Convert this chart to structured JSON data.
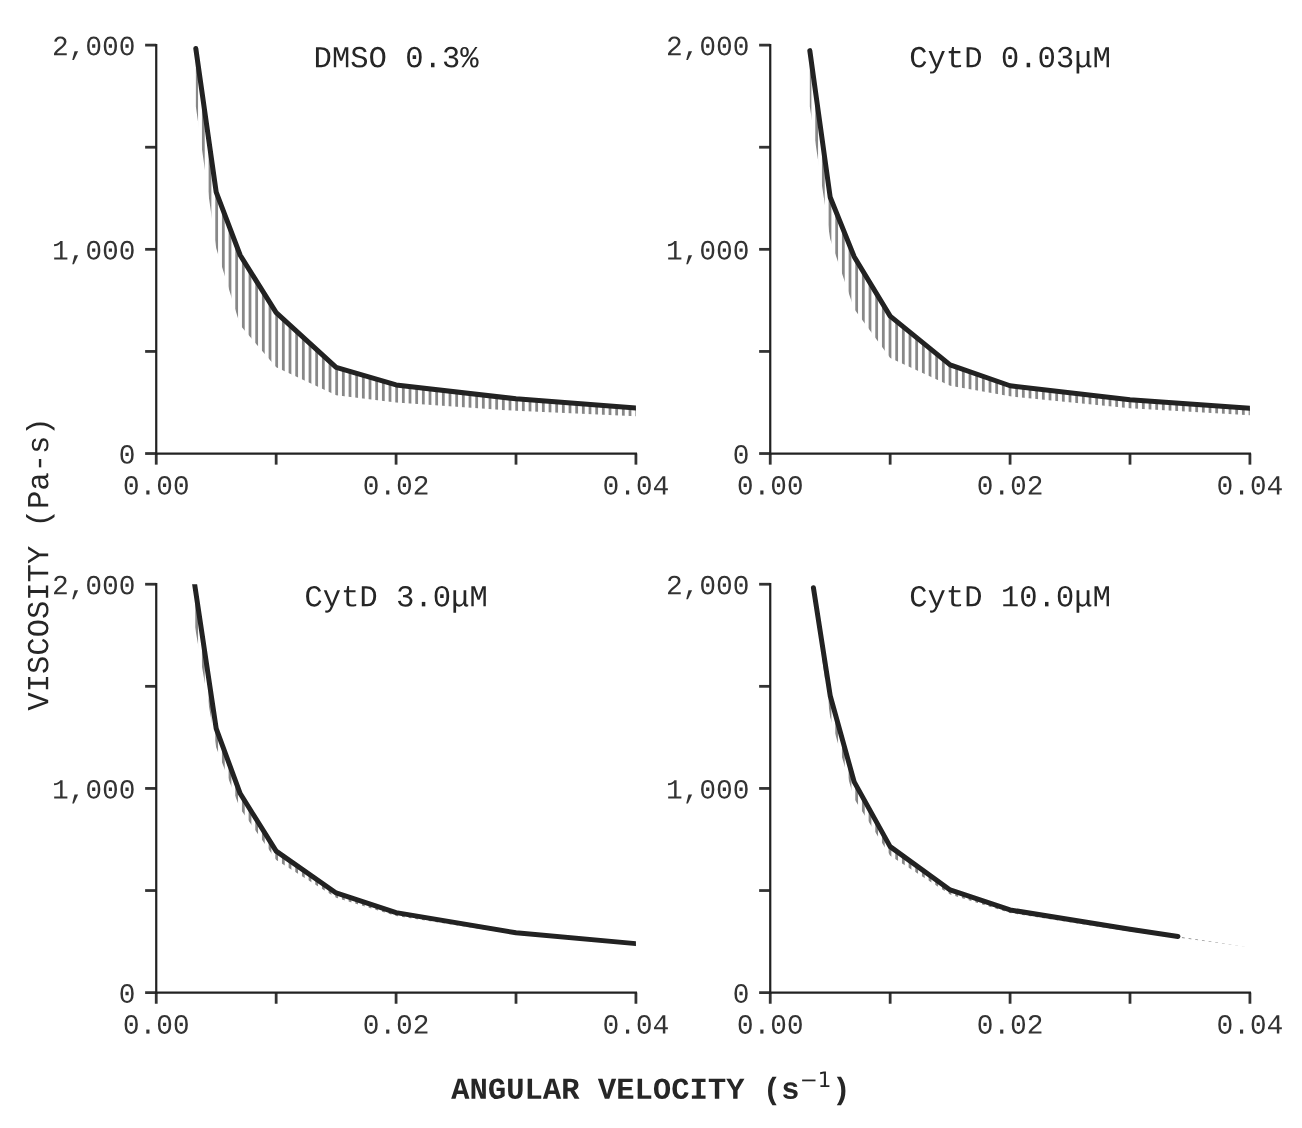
{
  "chart_data": [
    {
      "type": "line",
      "title": "DMSO 0.3%",
      "ylabel": "VISCOSITY (Pa-s)",
      "x": [
        0.0033,
        0.005,
        0.007,
        0.01,
        0.015,
        0.02,
        0.03,
        0.04
      ],
      "xlim": [
        0,
        0.04
      ],
      "ylim": [
        0,
        2000
      ],
      "xticks": [
        {
          "value": 0,
          "label": "0.00"
        },
        {
          "value": 0.01,
          "label": null
        },
        {
          "value": 0.02,
          "label": "0.02"
        },
        {
          "value": 0.03,
          "label": null
        },
        {
          "value": 0.04,
          "label": "0.04"
        }
      ],
      "yticks": [
        {
          "value": 0,
          "label": "0"
        },
        {
          "value": 500,
          "label": null
        },
        {
          "value": 1000,
          "label": "1,000"
        },
        {
          "value": 1500,
          "label": null
        },
        {
          "value": 2000,
          "label": "2,000"
        }
      ],
      "grid": false,
      "legend": false,
      "line_style": "solid",
      "marker": "none",
      "series": [
        {
          "color": "#222222",
          "values": [
            1983,
            1280,
            971,
            690,
            422,
            336,
            268,
            223
          ],
          "lower": [
            1700,
            1005,
            628,
            422,
            285,
            250,
            209,
            182
          ],
          "upper": [
            1983,
            1280,
            971,
            690,
            422,
            336,
            268,
            223
          ]
        }
      ]
    },
    {
      "type": "line",
      "title": "CytD 0.03μM",
      "x": [
        0.0033,
        0.005,
        0.007,
        0.01,
        0.015,
        0.02,
        0.03,
        0.04
      ],
      "xlim": [
        0,
        0.04
      ],
      "ylim": [
        0,
        2000
      ],
      "xticks": [
        {
          "value": 0,
          "label": "0.00"
        },
        {
          "value": 0.01,
          "label": null
        },
        {
          "value": 0.02,
          "label": "0.02"
        },
        {
          "value": 0.03,
          "label": null
        },
        {
          "value": 0.04,
          "label": "0.04"
        }
      ],
      "yticks": [
        {
          "value": 0,
          "label": "0"
        },
        {
          "value": 500,
          "label": null
        },
        {
          "value": 1000,
          "label": "1,000"
        },
        {
          "value": 1500,
          "label": null
        },
        {
          "value": 2000,
          "label": "2,000"
        }
      ],
      "grid": false,
      "legend": false,
      "line_style": "solid",
      "marker": "none",
      "series": [
        {
          "color": "#222222",
          "values": [
            1973,
            1255,
            964,
            673,
            434,
            332,
            263,
            222
          ],
          "lower": [
            1700,
            1050,
            708,
            468,
            332,
            280,
            222,
            188
          ],
          "upper": [
            1973,
            1255,
            964,
            673,
            434,
            332,
            263,
            222
          ]
        }
      ]
    },
    {
      "type": "line",
      "title": "CytD 3.0μM",
      "xlabel": "ANGULAR VELOCITY (s$^{−1}$)",
      "x": [
        0.0032,
        0.005,
        0.007,
        0.01,
        0.015,
        0.02,
        0.03,
        0.04
      ],
      "xlim": [
        0,
        0.04
      ],
      "ylim": [
        0,
        2000
      ],
      "xticks": [
        {
          "value": 0,
          "label": "0.00"
        },
        {
          "value": 0.01,
          "label": null
        },
        {
          "value": 0.02,
          "label": "0.02"
        },
        {
          "value": 0.03,
          "label": null
        },
        {
          "value": 0.04,
          "label": "0.04"
        }
      ],
      "yticks": [
        {
          "value": 0,
          "label": "0"
        },
        {
          "value": 500,
          "label": null
        },
        {
          "value": 1000,
          "label": "1,000"
        },
        {
          "value": 1500,
          "label": null
        },
        {
          "value": 2000,
          "label": "2,000"
        }
      ],
      "grid": false,
      "legend": false,
      "line_style": "solid",
      "marker": "none",
      "series": [
        {
          "color": "#222222",
          "values": [
            2000,
            1293,
            975,
            693,
            488,
            392,
            293,
            240
          ],
          "lower": [
            1800,
            1200,
            900,
            650,
            465,
            375,
            285,
            235
          ],
          "upper": [
            2000,
            1293,
            975,
            693,
            488,
            392,
            293,
            240
          ]
        }
      ]
    },
    {
      "type": "line",
      "title": "CytD 10.0μM",
      "x": [
        0.0036,
        0.005,
        0.007,
        0.01,
        0.015,
        0.02,
        0.03,
        0.034,
        0.04
      ],
      "xlim": [
        0,
        0.04
      ],
      "ylim": [
        0,
        2000
      ],
      "xticks": [
        {
          "value": 0,
          "label": "0.00"
        },
        {
          "value": 0.01,
          "label": null
        },
        {
          "value": 0.02,
          "label": "0.02"
        },
        {
          "value": 0.03,
          "label": null
        },
        {
          "value": 0.04,
          "label": "0.04"
        }
      ],
      "yticks": [
        {
          "value": 0,
          "label": "0"
        },
        {
          "value": 500,
          "label": null
        },
        {
          "value": 1000,
          "label": "1,000"
        },
        {
          "value": 1500,
          "label": null
        },
        {
          "value": 2000,
          "label": "2,000"
        }
      ],
      "grid": false,
      "legend": false,
      "line_style": "solid",
      "marker": "none",
      "series": [
        {
          "color": "#222222",
          "values": [
            1983,
            1454,
            1032,
            715,
            503,
            405,
            310,
            275,
            null
          ],
          "lower": [
            1950,
            1350,
            950,
            670,
            480,
            390,
            300,
            270,
            222
          ],
          "upper": [
            1983,
            1454,
            1032,
            715,
            503,
            405,
            310,
            275,
            222
          ]
        }
      ]
    }
  ]
}
